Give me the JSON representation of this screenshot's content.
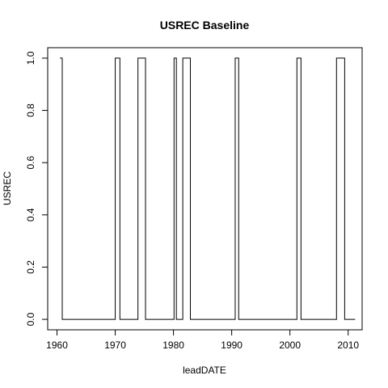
{
  "chart_data": {
    "type": "line",
    "title": "USREC Baseline",
    "xlabel": "leadDATE",
    "ylabel": "USREC",
    "xlim": [
      1958.4,
      2012.4
    ],
    "ylim": [
      -0.04,
      1.04
    ],
    "xticks": [
      "1960",
      "1970",
      "1980",
      "1990",
      "2000",
      "2010"
    ],
    "yticks": [
      "0.0",
      "0.2",
      "0.4",
      "0.6",
      "0.8",
      "1.0"
    ],
    "grid": false,
    "legend": "none",
    "line_color": "#000000",
    "series": [
      {
        "step_points": [
          [
            1960.5,
            1
          ],
          [
            1960.9,
            1
          ],
          [
            1960.9,
            0
          ],
          [
            1970.0,
            0
          ],
          [
            1970.0,
            1
          ],
          [
            1970.8,
            1
          ],
          [
            1970.8,
            0
          ],
          [
            1973.9,
            0
          ],
          [
            1973.9,
            1
          ],
          [
            1975.2,
            1
          ],
          [
            1975.2,
            0
          ],
          [
            1980.1,
            0
          ],
          [
            1980.1,
            1
          ],
          [
            1980.5,
            1
          ],
          [
            1980.5,
            0
          ],
          [
            1981.6,
            0
          ],
          [
            1981.6,
            1
          ],
          [
            1982.9,
            1
          ],
          [
            1982.9,
            0
          ],
          [
            1990.6,
            0
          ],
          [
            1990.6,
            1
          ],
          [
            1991.2,
            1
          ],
          [
            1991.2,
            0
          ],
          [
            2001.2,
            0
          ],
          [
            2001.2,
            1
          ],
          [
            2001.9,
            1
          ],
          [
            2001.9,
            0
          ],
          [
            2008.0,
            0
          ],
          [
            2008.0,
            1
          ],
          [
            2009.4,
            1
          ],
          [
            2009.4,
            0
          ],
          [
            2011.2,
            0
          ]
        ]
      }
    ]
  }
}
